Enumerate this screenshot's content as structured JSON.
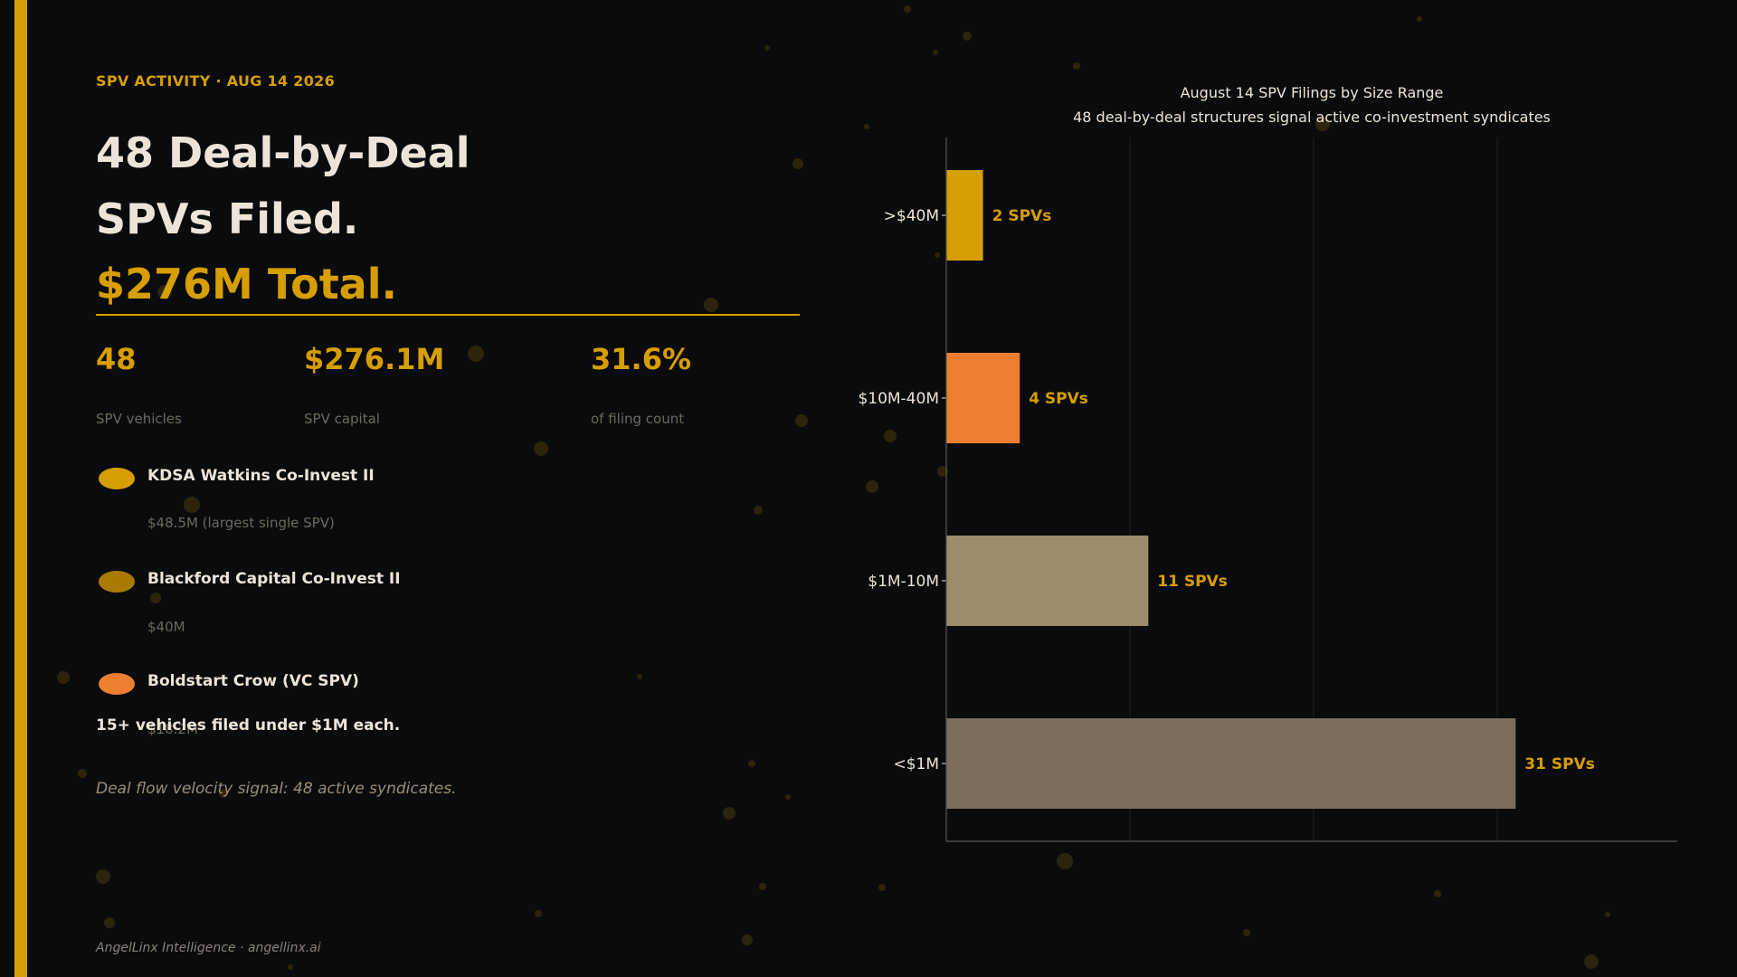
{
  "header": {
    "eyebrow": "SPV ACTIVITY  ·  AUG 14 2026",
    "headline_line1": "48 Deal-by-Deal",
    "headline_line2": "SPVs Filed.",
    "headline_line3": "$276M Total."
  },
  "stats": [
    {
      "value": "48",
      "label": "SPV vehicles"
    },
    {
      "value": "$276.1M",
      "label": "SPV capital"
    },
    {
      "value": "31.6%",
      "label": "of filing count"
    }
  ],
  "spvs": [
    {
      "name": "KDSA Watkins Co-Invest II",
      "amount": "$48.5M  (largest single SPV)",
      "color": "#d69e00"
    },
    {
      "name": "Blackford Capital Co-Invest II",
      "amount": "$40M",
      "color": "#a87a00"
    },
    {
      "name": "Boldstart Crow (VC SPV)",
      "amount": "$18.2M",
      "color": "#ee7f30"
    }
  ],
  "note": "15+ vehicles filed under $1M each.",
  "signal": "Deal flow velocity signal: 48 active syndicates.",
  "footer": "AngelLinx Intelligence  ·  angellinx.ai",
  "colors": {
    "accent": "#d69e00",
    "background": "#0a0b0c",
    "text": "#ece4d8"
  },
  "chart_data": {
    "type": "bar",
    "orientation": "horizontal",
    "title": "August 14 SPV Filings by Size Range",
    "subtitle": "48 deal-by-deal structures signal active co-investment syndicates",
    "categories": [
      ">$40M",
      "$10M-40M",
      "$1M-10M",
      "<$1M"
    ],
    "values": [
      2,
      4,
      11,
      31
    ],
    "data_labels": [
      "2 SPVs",
      "4 SPVs",
      "11 SPVs",
      "31 SPVs"
    ],
    "bar_colors": [
      "#d69e00",
      "#ee7f30",
      "#9c8c6c",
      "#7b6e5e"
    ],
    "xlim": [
      0,
      40
    ],
    "grid": true,
    "xlabel": "",
    "ylabel": ""
  }
}
